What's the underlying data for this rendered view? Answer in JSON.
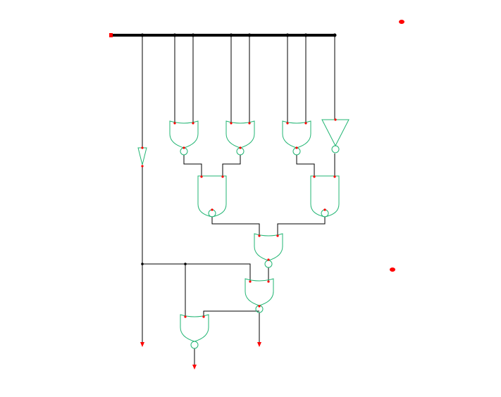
{
  "diagram": {
    "type": "logic-circuit-schematic",
    "colors": {
      "background": "#ffffff",
      "wire": "#000000",
      "bus": "#000000",
      "gate_outline": "#22b573",
      "pin": "#ff0000",
      "junction": "#000000"
    },
    "components": [
      {
        "kind": "bus",
        "name": "input-bus"
      },
      {
        "kind": "nor-gate",
        "name": "nor-gate-1"
      },
      {
        "kind": "nor-gate",
        "name": "nor-gate-2"
      },
      {
        "kind": "nor-gate",
        "name": "nor-gate-3"
      },
      {
        "kind": "not-gate",
        "name": "not-gate-bus"
      },
      {
        "kind": "buffer",
        "name": "buffer-left"
      },
      {
        "kind": "nand-gate",
        "name": "nand-gate-1"
      },
      {
        "kind": "nand-gate",
        "name": "nand-gate-2"
      },
      {
        "kind": "nor-gate",
        "name": "nor-gate-4"
      },
      {
        "kind": "nor-gate",
        "name": "nor-gate-5"
      },
      {
        "kind": "nor-gate",
        "name": "nor-gate-6"
      }
    ]
  }
}
